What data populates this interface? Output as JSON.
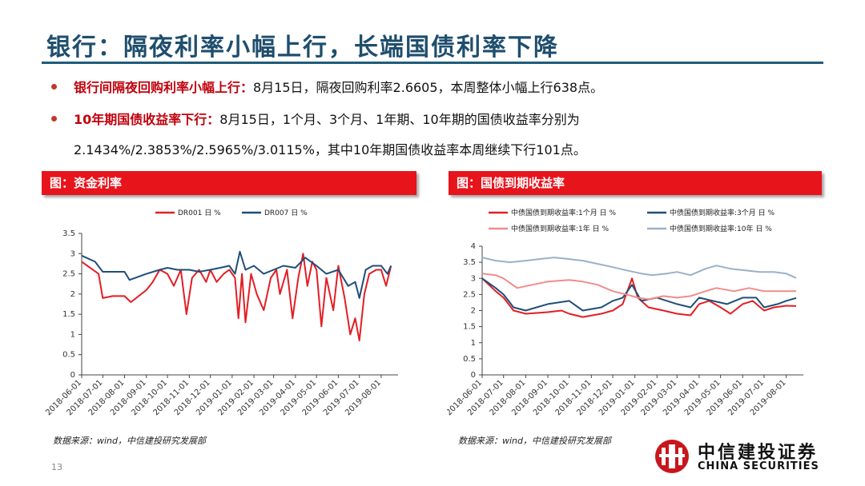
{
  "slide": {
    "title": "银行：隔夜利率小幅上行，长端国债利率下降",
    "page_number": "13",
    "bullets": [
      {
        "label": "银行间隔夜回购利率小幅上行：",
        "text": "8月15日，隔夜回购利率2.6605，本周整体小幅上行638点。"
      },
      {
        "label": "10年期国债收益率下行：",
        "text": "8月15日，1个月、3个月、1年期、10年期的国债收益率分别为",
        "text2": "2.1434%/2.3853%/2.5965%/3.0115%，其中10年期国债收益率本周继续下行101点。"
      }
    ],
    "logo": {
      "cn": "中信建投证券",
      "en": "CHINA SECURITIES"
    }
  },
  "colors": {
    "red": "#e31e24",
    "navy": "#1f4e79",
    "pink": "#f08c8c",
    "grayblue": "#9bb0c8",
    "title": "#1f4e6e"
  },
  "chart_data": [
    {
      "type": "line",
      "panel_title": "图：资金利率",
      "source": "数据来源：wind，中信建投研究发展部",
      "ylim": [
        0,
        3.5
      ],
      "yticks": [
        "0",
        "0.5",
        "1",
        "1.5",
        "2",
        "2.5",
        "3",
        "3.5"
      ],
      "xticks": [
        "2018-06-01",
        "2018-07-01",
        "2018-08-01",
        "2018-09-01",
        "2018-10-01",
        "2018-11-01",
        "2018-12-01",
        "2019-01-01",
        "2019-02-01",
        "2019-03-01",
        "2019-04-01",
        "2019-05-01",
        "2019-06-01",
        "2019-07-01",
        "2019-08-01"
      ],
      "series": [
        {
          "name": "DR001 日 %",
          "color": "#e31e24",
          "values": [
            [
              "2018-06-01",
              2.8
            ],
            [
              "2018-06-25",
              2.5
            ],
            [
              "2018-07-01",
              1.9
            ],
            [
              "2018-07-15",
              1.95
            ],
            [
              "2018-08-01",
              1.95
            ],
            [
              "2018-08-10",
              1.8
            ],
            [
              "2018-09-01",
              2.1
            ],
            [
              "2018-09-10",
              2.3
            ],
            [
              "2018-09-20",
              2.6
            ],
            [
              "2018-10-01",
              2.5
            ],
            [
              "2018-10-10",
              2.2
            ],
            [
              "2018-10-20",
              2.6
            ],
            [
              "2018-10-28",
              1.5
            ],
            [
              "2018-11-05",
              2.4
            ],
            [
              "2018-11-15",
              2.6
            ],
            [
              "2018-11-25",
              2.3
            ],
            [
              "2018-12-01",
              2.6
            ],
            [
              "2018-12-10",
              2.3
            ],
            [
              "2018-12-20",
              2.5
            ],
            [
              "2018-12-28",
              2.6
            ],
            [
              "2019-01-05",
              2.4
            ],
            [
              "2019-01-10",
              1.4
            ],
            [
              "2019-01-15",
              2.5
            ],
            [
              "2019-01-20",
              1.3
            ],
            [
              "2019-01-28",
              2.5
            ],
            [
              "2019-02-05",
              2.0
            ],
            [
              "2019-02-15",
              1.6
            ],
            [
              "2019-02-25",
              2.4
            ],
            [
              "2019-03-05",
              2.6
            ],
            [
              "2019-03-10",
              2.0
            ],
            [
              "2019-03-20",
              2.6
            ],
            [
              "2019-03-28",
              1.4
            ],
            [
              "2019-04-05",
              2.4
            ],
            [
              "2019-04-12",
              3.0
            ],
            [
              "2019-04-18",
              2.2
            ],
            [
              "2019-04-25",
              2.8
            ],
            [
              "2019-05-01",
              2.6
            ],
            [
              "2019-05-08",
              1.2
            ],
            [
              "2019-05-15",
              2.4
            ],
            [
              "2019-05-25",
              1.6
            ],
            [
              "2019-06-01",
              2.7
            ],
            [
              "2019-06-10",
              1.9
            ],
            [
              "2019-06-18",
              1.0
            ],
            [
              "2019-06-25",
              1.4
            ],
            [
              "2019-07-01",
              0.85
            ],
            [
              "2019-07-08",
              2.0
            ],
            [
              "2019-07-15",
              2.5
            ],
            [
              "2019-07-25",
              2.6
            ],
            [
              "2019-08-01",
              2.6
            ],
            [
              "2019-08-08",
              2.2
            ],
            [
              "2019-08-15",
              2.7
            ]
          ]
        },
        {
          "name": "DR007 日 %",
          "color": "#1f4e79",
          "values": [
            [
              "2018-06-01",
              2.95
            ],
            [
              "2018-06-20",
              2.8
            ],
            [
              "2018-07-01",
              2.55
            ],
            [
              "2018-07-20",
              2.55
            ],
            [
              "2018-08-01",
              2.55
            ],
            [
              "2018-08-08",
              2.35
            ],
            [
              "2018-09-01",
              2.5
            ],
            [
              "2018-09-20",
              2.6
            ],
            [
              "2018-10-01",
              2.65
            ],
            [
              "2018-10-15",
              2.6
            ],
            [
              "2018-11-01",
              2.6
            ],
            [
              "2018-11-15",
              2.55
            ],
            [
              "2018-12-01",
              2.6
            ],
            [
              "2018-12-15",
              2.65
            ],
            [
              "2018-12-28",
              2.7
            ],
            [
              "2019-01-05",
              2.5
            ],
            [
              "2019-01-12",
              3.05
            ],
            [
              "2019-01-20",
              2.6
            ],
            [
              "2019-02-01",
              2.7
            ],
            [
              "2019-02-15",
              2.5
            ],
            [
              "2019-03-01",
              2.6
            ],
            [
              "2019-03-15",
              2.7
            ],
            [
              "2019-04-01",
              2.65
            ],
            [
              "2019-04-15",
              2.9
            ],
            [
              "2019-05-01",
              2.7
            ],
            [
              "2019-05-15",
              2.5
            ],
            [
              "2019-06-01",
              2.6
            ],
            [
              "2019-06-15",
              2.2
            ],
            [
              "2019-06-25",
              2.3
            ],
            [
              "2019-07-01",
              1.9
            ],
            [
              "2019-07-10",
              2.6
            ],
            [
              "2019-07-20",
              2.7
            ],
            [
              "2019-08-01",
              2.7
            ],
            [
              "2019-08-10",
              2.5
            ],
            [
              "2019-08-15",
              2.7
            ]
          ]
        }
      ]
    },
    {
      "type": "line",
      "panel_title": "图：国债到期收益率",
      "source": "数据来源：wind，中信建投研究发展部",
      "ylim": [
        0,
        4
      ],
      "yticks": [
        "0",
        "0.5",
        "1",
        "1.5",
        "2",
        "2.5",
        "3",
        "3.5",
        "4"
      ],
      "xticks": [
        "2018-06-01",
        "2018-07-01",
        "2018-08-01",
        "2018-09-01",
        "2018-10-01",
        "2018-11-01",
        "2018-12-01",
        "2019-01-01",
        "2019-02-01",
        "2019-03-01",
        "2019-04-01",
        "2019-05-01",
        "2019-06-01",
        "2019-07-01",
        "2019-08-01"
      ],
      "series": [
        {
          "name": "中债国债到期收益率:1个月 日 %",
          "color": "#e31e24",
          "values": [
            [
              "2018-06-01",
              3.0
            ],
            [
              "2018-06-20",
              2.6
            ],
            [
              "2018-07-01",
              2.4
            ],
            [
              "2018-07-15",
              2.0
            ],
            [
              "2018-08-01",
              1.9
            ],
            [
              "2018-09-01",
              1.95
            ],
            [
              "2018-09-20",
              2.0
            ],
            [
              "2018-10-01",
              1.9
            ],
            [
              "2018-10-20",
              1.8
            ],
            [
              "2018-11-15",
              1.9
            ],
            [
              "2018-12-01",
              2.0
            ],
            [
              "2018-12-15",
              2.2
            ],
            [
              "2018-12-28",
              3.0
            ],
            [
              "2019-01-05",
              2.4
            ],
            [
              "2019-01-20",
              2.1
            ],
            [
              "2019-02-10",
              2.0
            ],
            [
              "2019-03-01",
              1.9
            ],
            [
              "2019-03-20",
              1.85
            ],
            [
              "2019-04-01",
              2.2
            ],
            [
              "2019-04-15",
              2.3
            ],
            [
              "2019-05-01",
              2.1
            ],
            [
              "2019-05-15",
              1.9
            ],
            [
              "2019-06-01",
              2.2
            ],
            [
              "2019-06-15",
              2.3
            ],
            [
              "2019-07-01",
              2.0
            ],
            [
              "2019-07-15",
              2.1
            ],
            [
              "2019-08-01",
              2.15
            ],
            [
              "2019-08-15",
              2.14
            ]
          ]
        },
        {
          "name": "中债国债到期收益率:3个月 日 %",
          "color": "#1f4e79",
          "values": [
            [
              "2018-06-01",
              3.0
            ],
            [
              "2018-06-20",
              2.7
            ],
            [
              "2018-07-01",
              2.5
            ],
            [
              "2018-07-15",
              2.1
            ],
            [
              "2018-08-01",
              2.0
            ],
            [
              "2018-09-01",
              2.2
            ],
            [
              "2018-10-01",
              2.3
            ],
            [
              "2018-10-20",
              2.0
            ],
            [
              "2018-11-15",
              2.1
            ],
            [
              "2018-12-01",
              2.3
            ],
            [
              "2018-12-15",
              2.4
            ],
            [
              "2018-12-28",
              2.8
            ],
            [
              "2019-01-10",
              2.3
            ],
            [
              "2019-02-01",
              2.4
            ],
            [
              "2019-03-01",
              2.2
            ],
            [
              "2019-03-20",
              2.1
            ],
            [
              "2019-04-01",
              2.4
            ],
            [
              "2019-04-20",
              2.3
            ],
            [
              "2019-05-10",
              2.2
            ],
            [
              "2019-06-01",
              2.4
            ],
            [
              "2019-06-20",
              2.4
            ],
            [
              "2019-07-01",
              2.1
            ],
            [
              "2019-07-20",
              2.2
            ],
            [
              "2019-08-01",
              2.3
            ],
            [
              "2019-08-15",
              2.39
            ]
          ]
        },
        {
          "name": "中债国债到期收益率:1年 日 %",
          "color": "#f08c8c",
          "values": [
            [
              "2018-06-01",
              3.15
            ],
            [
              "2018-06-20",
              3.1
            ],
            [
              "2018-07-01",
              3.0
            ],
            [
              "2018-07-20",
              2.7
            ],
            [
              "2018-08-10",
              2.8
            ],
            [
              "2018-09-01",
              2.9
            ],
            [
              "2018-10-01",
              2.95
            ],
            [
              "2018-10-20",
              2.9
            ],
            [
              "2018-11-10",
              2.8
            ],
            [
              "2018-12-01",
              2.6
            ],
            [
              "2018-12-20",
              2.5
            ],
            [
              "2019-01-05",
              2.4
            ],
            [
              "2019-01-20",
              2.35
            ],
            [
              "2019-02-10",
              2.45
            ],
            [
              "2019-03-01",
              2.4
            ],
            [
              "2019-03-20",
              2.45
            ],
            [
              "2019-04-10",
              2.6
            ],
            [
              "2019-04-25",
              2.7
            ],
            [
              "2019-05-20",
              2.6
            ],
            [
              "2019-06-10",
              2.7
            ],
            [
              "2019-07-01",
              2.6
            ],
            [
              "2019-07-20",
              2.6
            ],
            [
              "2019-08-15",
              2.6
            ]
          ]
        },
        {
          "name": "中债国债到期收益率:10年 日 %",
          "color": "#9bb0c8",
          "values": [
            [
              "2018-06-01",
              3.65
            ],
            [
              "2018-06-20",
              3.55
            ],
            [
              "2018-07-10",
              3.5
            ],
            [
              "2018-08-01",
              3.55
            ],
            [
              "2018-08-20",
              3.6
            ],
            [
              "2018-09-10",
              3.65
            ],
            [
              "2018-10-01",
              3.6
            ],
            [
              "2018-10-20",
              3.55
            ],
            [
              "2018-11-10",
              3.45
            ],
            [
              "2018-12-01",
              3.35
            ],
            [
              "2018-12-20",
              3.25
            ],
            [
              "2019-01-10",
              3.15
            ],
            [
              "2019-01-25",
              3.1
            ],
            [
              "2019-02-15",
              3.15
            ],
            [
              "2019-03-01",
              3.2
            ],
            [
              "2019-03-20",
              3.1
            ],
            [
              "2019-04-10",
              3.3
            ],
            [
              "2019-04-25",
              3.4
            ],
            [
              "2019-05-15",
              3.3
            ],
            [
              "2019-06-05",
              3.25
            ],
            [
              "2019-06-25",
              3.2
            ],
            [
              "2019-07-15",
              3.2
            ],
            [
              "2019-08-01",
              3.15
            ],
            [
              "2019-08-15",
              3.01
            ]
          ]
        }
      ]
    }
  ]
}
